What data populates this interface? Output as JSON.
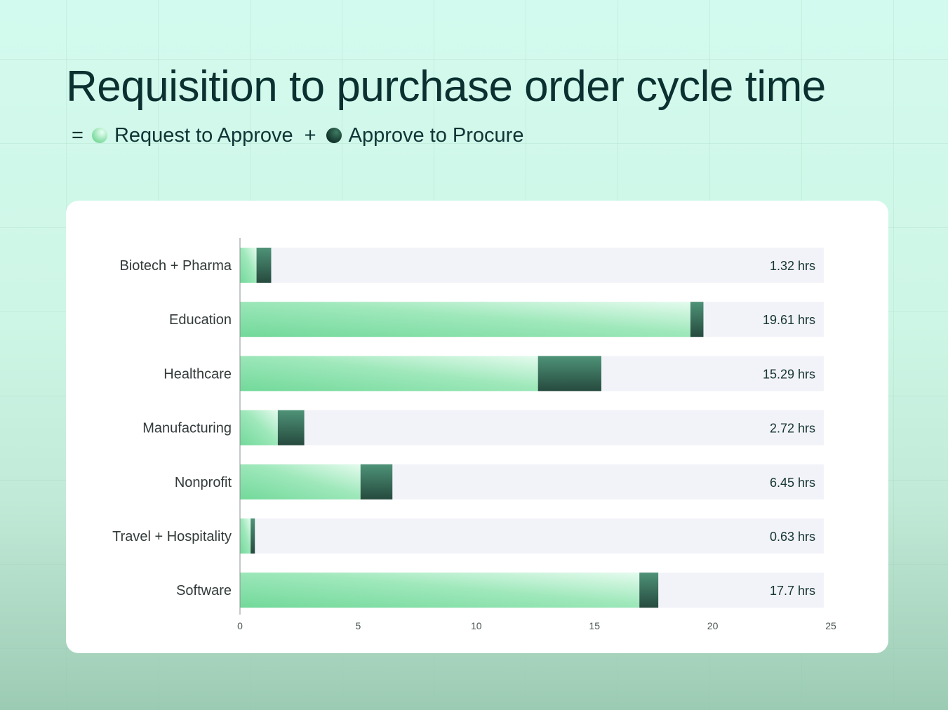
{
  "title": "Requisition to purchase order cycle time",
  "legend": {
    "equals": "=",
    "plus": "+",
    "items": [
      {
        "label": "Request to Approve",
        "icon": "light-green-dot"
      },
      {
        "label": "Approve to Procure",
        "icon": "dark-green-dot"
      }
    ]
  },
  "colors": {
    "request_light": "#e4fbee",
    "request_dark": "#72d99a",
    "procure_light": "#4e9378",
    "procure_dark": "#264a3e",
    "track": "#f2f3f8"
  },
  "chart_data": {
    "type": "bar",
    "orientation": "horizontal",
    "stacked": true,
    "categories": [
      "Biotech + Pharma",
      "Education",
      "Healthcare",
      "Manufacturing",
      "Nonprofit",
      "Travel + Hospitality",
      "Software"
    ],
    "series": [
      {
        "name": "Request to Approve",
        "values": [
          0.7,
          19.06,
          12.61,
          1.6,
          5.1,
          0.45,
          16.9
        ]
      },
      {
        "name": "Approve to Procure",
        "values": [
          0.62,
          0.55,
          2.68,
          1.12,
          1.35,
          0.18,
          0.8
        ]
      }
    ],
    "value_labels": [
      "1.32 hrs",
      "19.61 hrs",
      "15.29 hrs",
      "2.72 hrs",
      "6.45 hrs",
      "0.63 hrs",
      "17.7 hrs"
    ],
    "xlim": [
      0,
      25
    ],
    "xticks": [
      "0",
      "5",
      "10",
      "15",
      "20",
      "25"
    ],
    "grid": false
  }
}
